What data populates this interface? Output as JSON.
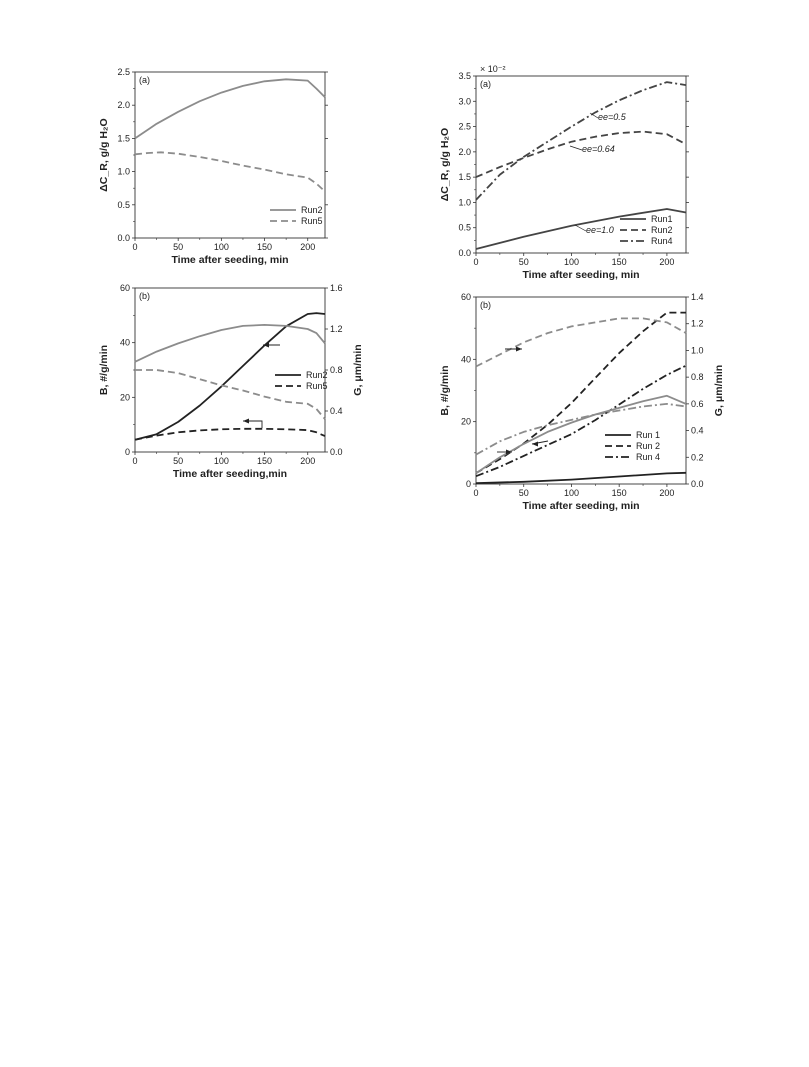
{
  "chart_data": [
    {
      "type": "line",
      "panel": "(a)",
      "xlabel": "Time after seeding, min",
      "ylabel": "ΔC_R, g/g H₂O",
      "xlim": [
        0,
        220
      ],
      "ylim": [
        0,
        2.5
      ],
      "xticks": [
        "0",
        "50",
        "100",
        "150",
        "200"
      ],
      "yticks": [
        "0.0",
        "0.5",
        "1.0",
        "1.5",
        "2.0",
        "2.5"
      ],
      "legend": "bottom-right",
      "series": [
        {
          "name": "Run2",
          "style": "solid",
          "color": "#8c8c8c",
          "x": [
            0,
            25,
            50,
            75,
            100,
            125,
            150,
            175,
            200,
            210,
            220
          ],
          "y": [
            1.5,
            1.72,
            1.9,
            2.06,
            2.19,
            2.29,
            2.36,
            2.39,
            2.37,
            2.25,
            2.12
          ]
        },
        {
          "name": "Run5",
          "style": "dashed",
          "color": "#8c8c8c",
          "x": [
            0,
            15,
            30,
            50,
            75,
            100,
            125,
            150,
            175,
            200,
            210,
            220
          ],
          "y": [
            1.26,
            1.28,
            1.29,
            1.27,
            1.22,
            1.16,
            1.09,
            1.03,
            0.96,
            0.91,
            0.82,
            0.7
          ]
        }
      ]
    },
    {
      "type": "line",
      "panel": "(a)",
      "xlabel": "Time after seeding, min",
      "ylabel": "ΔC_R, g/g H₂O",
      "yscale_label": "× 10⁻²",
      "xlim": [
        0,
        220
      ],
      "ylim": [
        0,
        3.5
      ],
      "xticks": [
        "0",
        "50",
        "100",
        "150",
        "200"
      ],
      "yticks": [
        "0.0",
        "0.5",
        "1.0",
        "1.5",
        "2.0",
        "2.5",
        "3.0",
        "3.5"
      ],
      "legend": "bottom-right",
      "annotations": [
        "ee=0.5",
        "ee=0.64",
        "ee=1.0"
      ],
      "series": [
        {
          "name": "Run1",
          "style": "solid",
          "color": "#444444",
          "x": [
            0,
            50,
            100,
            150,
            200,
            220
          ],
          "y": [
            0.08,
            0.32,
            0.54,
            0.72,
            0.87,
            0.8
          ]
        },
        {
          "name": "Run2",
          "style": "dashed",
          "color": "#444444",
          "x": [
            0,
            25,
            50,
            75,
            100,
            125,
            150,
            175,
            200,
            220
          ],
          "y": [
            1.5,
            1.7,
            1.88,
            2.05,
            2.2,
            2.3,
            2.37,
            2.4,
            2.35,
            2.15
          ]
        },
        {
          "name": "Run4",
          "style": "dashdot",
          "color": "#444444",
          "x": [
            0,
            25,
            50,
            75,
            100,
            125,
            150,
            175,
            200,
            220
          ],
          "y": [
            1.05,
            1.55,
            1.9,
            2.2,
            2.5,
            2.78,
            3.02,
            3.22,
            3.38,
            3.32
          ]
        }
      ]
    },
    {
      "type": "line",
      "panel": "(b)",
      "xlabel": "Time after seeding,min",
      "ylabel": "B, #/g/min",
      "y2label": "G, μm/min",
      "xlim": [
        0,
        220
      ],
      "ylim": [
        0,
        60
      ],
      "y2lim": [
        0,
        1.6
      ],
      "xticks": [
        "0",
        "50",
        "100",
        "150",
        "200"
      ],
      "yticks": [
        "0",
        "20",
        "40",
        "60"
      ],
      "y2ticks": [
        "0.0",
        "0.4",
        "0.8",
        "1.2",
        "1.6"
      ],
      "legend": "right",
      "series": [
        {
          "name": "Run2",
          "quantity": "B",
          "axis": "left",
          "style": "solid",
          "color": "#222222",
          "x": [
            0,
            25,
            50,
            75,
            100,
            125,
            150,
            175,
            200,
            210,
            220
          ],
          "y": [
            4.5,
            6.5,
            11,
            17,
            24,
            31.5,
            39,
            46,
            50.5,
            50.8,
            50.5
          ]
        },
        {
          "name": "Run5",
          "quantity": "B",
          "axis": "left",
          "style": "dashed",
          "color": "#222222",
          "x": [
            0,
            25,
            50,
            75,
            100,
            125,
            150,
            175,
            200,
            210,
            220
          ],
          "y": [
            4.5,
            6,
            7.2,
            7.9,
            8.3,
            8.5,
            8.5,
            8.3,
            8,
            7.2,
            5.8
          ]
        },
        {
          "name": "Run2",
          "quantity": "G",
          "axis": "right",
          "style": "solid",
          "color": "#8c8c8c",
          "x": [
            0,
            25,
            50,
            75,
            100,
            125,
            150,
            175,
            200,
            210,
            220
          ],
          "y": [
            0.88,
            0.98,
            1.06,
            1.13,
            1.19,
            1.23,
            1.24,
            1.23,
            1.2,
            1.16,
            1.06
          ]
        },
        {
          "name": "Run5",
          "quantity": "G",
          "axis": "right",
          "style": "dashed",
          "color": "#8c8c8c",
          "x": [
            0,
            25,
            50,
            75,
            100,
            125,
            150,
            175,
            200,
            210,
            220
          ],
          "y": [
            0.8,
            0.8,
            0.77,
            0.71,
            0.65,
            0.6,
            0.54,
            0.49,
            0.47,
            0.42,
            0.32
          ]
        }
      ]
    },
    {
      "type": "line",
      "panel": "(b)",
      "xlabel": "Time after seeding, min",
      "ylabel": "B, #/g/min",
      "y2label": "G, μm/min",
      "xlim": [
        0,
        220
      ],
      "ylim": [
        0,
        60
      ],
      "y2lim": [
        0,
        1.4
      ],
      "xticks": [
        "0",
        "50",
        "100",
        "150",
        "200"
      ],
      "yticks": [
        "0",
        "20",
        "40",
        "60"
      ],
      "y2ticks": [
        "0.0",
        "0.2",
        "0.4",
        "0.6",
        "0.8",
        "1.0",
        "1.2",
        "1.4"
      ],
      "legend": "bottom-right",
      "series": [
        {
          "name": "Run 1",
          "quantity": "B",
          "axis": "left",
          "style": "solid",
          "color": "#222222",
          "x": [
            0,
            50,
            100,
            150,
            200,
            220
          ],
          "y": [
            0.3,
            0.7,
            1.4,
            2.4,
            3.4,
            3.6
          ]
        },
        {
          "name": "Run 2",
          "quantity": "B",
          "axis": "left",
          "style": "dashed",
          "color": "#222222",
          "x": [
            0,
            25,
            50,
            75,
            100,
            125,
            150,
            175,
            200,
            220
          ],
          "y": [
            3.5,
            8,
            13,
            19,
            26,
            34,
            42,
            49,
            55,
            55
          ]
        },
        {
          "name": "Run 4",
          "quantity": "B",
          "axis": "left",
          "style": "dashdot",
          "color": "#222222",
          "x": [
            0,
            25,
            50,
            75,
            100,
            125,
            150,
            175,
            200,
            220
          ],
          "y": [
            2.5,
            5.5,
            9,
            12.5,
            16,
            20.5,
            25.5,
            30.5,
            35,
            38
          ]
        },
        {
          "name": "Run 1",
          "quantity": "G",
          "axis": "right",
          "style": "solid",
          "color": "#8c8c8c",
          "x": [
            0,
            25,
            50,
            75,
            100,
            125,
            150,
            175,
            200,
            220
          ],
          "y": [
            0.08,
            0.2,
            0.3,
            0.39,
            0.46,
            0.52,
            0.57,
            0.62,
            0.66,
            0.6
          ]
        },
        {
          "name": "Run 2",
          "quantity": "G",
          "axis": "right",
          "style": "dashed",
          "color": "#8c8c8c",
          "x": [
            0,
            25,
            50,
            75,
            100,
            125,
            150,
            175,
            200,
            220
          ],
          "y": [
            0.88,
            0.97,
            1.06,
            1.13,
            1.18,
            1.21,
            1.24,
            1.24,
            1.21,
            1.13
          ]
        },
        {
          "name": "Run 4",
          "quantity": "G",
          "axis": "right",
          "style": "dashdot",
          "color": "#8c8c8c",
          "x": [
            0,
            25,
            50,
            75,
            100,
            125,
            150,
            175,
            200,
            220
          ],
          "y": [
            0.22,
            0.32,
            0.39,
            0.44,
            0.48,
            0.52,
            0.55,
            0.58,
            0.6,
            0.58
          ]
        }
      ]
    }
  ]
}
